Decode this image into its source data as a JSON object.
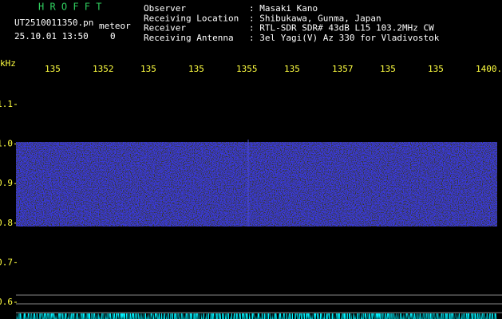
{
  "header": {
    "app": "H R O F F T",
    "file": "UT2510011350.pn",
    "mode": "meteor",
    "datetime": "25.10.01 13:50",
    "count": "0",
    "info": [
      {
        "label": "Observer",
        "value": ": Masaki Kano"
      },
      {
        "label": "Receiving Location",
        "value": ": Shibukawa, Gunma, Japan"
      },
      {
        "label": "Receiver",
        "value": ": RTL-SDR SDR# 43dB L15 103.2MHz CW"
      },
      {
        "label": "Receiving Antenna",
        "value": ": 3el Yagi(V) Az 330 for Vladivostok"
      }
    ]
  },
  "axis": {
    "x_labels": [
      "135",
      "1352",
      "135",
      "135",
      "1355",
      "135",
      "1357",
      "135",
      "135",
      "1400."
    ],
    "y_unit": "kHz",
    "y_labels": [
      "1.1",
      "1.0",
      "0.9",
      "0.8",
      "0.7",
      "0.6"
    ]
  }
}
